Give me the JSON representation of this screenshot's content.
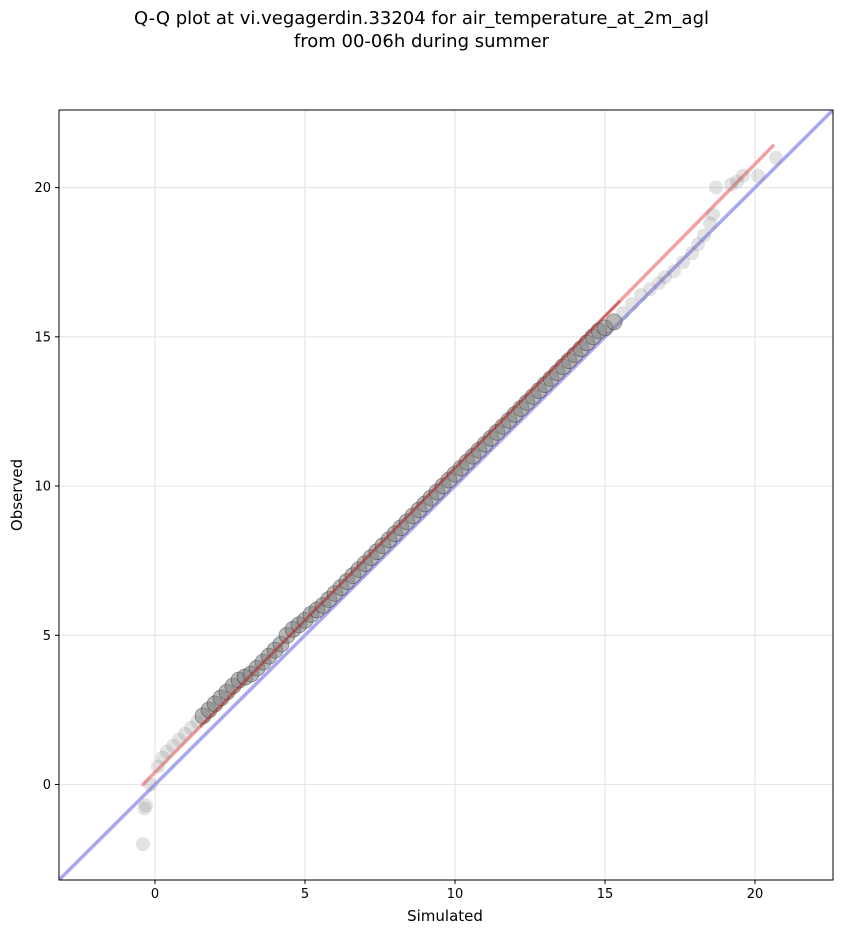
{
  "title_line1": "Q-Q plot at vi.vegagerdin.33204 for air_temperature_at_2m_agl",
  "title_line2": "from 00-06h during summer",
  "chart_data": {
    "type": "scatter",
    "title": "Q-Q plot at vi.vegagerdin.33204 for air_temperature_at_2m_agl from 00-06h during summer",
    "xlabel": "Simulated",
    "ylabel": "Observed",
    "xlim": [
      -3.2,
      22.6
    ],
    "ylim": [
      -3.2,
      22.6
    ],
    "xticks": [
      0,
      5,
      10,
      15,
      20
    ],
    "yticks": [
      0,
      5,
      10,
      15,
      20
    ],
    "grid": true,
    "colors": {
      "points": "#808080",
      "fit_line": "#f4a0a0",
      "identity_line": "#a8a8f0",
      "fit_overlay": "#b03030"
    },
    "points": {
      "x": [
        -0.4,
        -0.35,
        -0.3,
        -0.15,
        0.1,
        0.25,
        0.4,
        0.6,
        0.8,
        1.0,
        1.2,
        1.4,
        1.6,
        1.8,
        2.0,
        2.2,
        2.4,
        2.6,
        2.8,
        3.0,
        3.2,
        3.4,
        3.6,
        3.8,
        4.0,
        4.2,
        4.4,
        4.6,
        4.8,
        5.0,
        5.2,
        5.4,
        5.6,
        5.8,
        6.0,
        6.2,
        6.4,
        6.6,
        6.8,
        7.0,
        7.2,
        7.4,
        7.6,
        7.8,
        8.0,
        8.2,
        8.4,
        8.6,
        8.8,
        9.0,
        9.2,
        9.4,
        9.6,
        9.8,
        10.0,
        10.2,
        10.4,
        10.6,
        10.8,
        11.0,
        11.2,
        11.4,
        11.6,
        11.8,
        12.0,
        12.2,
        12.4,
        12.6,
        12.8,
        13.0,
        13.2,
        13.4,
        13.6,
        13.8,
        14.0,
        14.2,
        14.4,
        14.6,
        14.8,
        15.0,
        15.3,
        15.6,
        15.9,
        16.2,
        16.5,
        16.8,
        17.0,
        17.3,
        17.6,
        17.9,
        18.1,
        18.3,
        18.5,
        18.6,
        18.7,
        19.2,
        19.4,
        19.6,
        20.1,
        20.7
      ],
      "y": [
        -2.0,
        -0.8,
        -0.7,
        0.0,
        0.6,
        0.9,
        1.1,
        1.3,
        1.5,
        1.7,
        1.9,
        2.1,
        2.3,
        2.5,
        2.7,
        2.9,
        3.1,
        3.3,
        3.5,
        3.6,
        3.7,
        3.9,
        4.1,
        4.3,
        4.5,
        4.7,
        5.0,
        5.2,
        5.35,
        5.5,
        5.7,
        5.85,
        6.0,
        6.2,
        6.4,
        6.6,
        6.8,
        7.0,
        7.2,
        7.4,
        7.6,
        7.8,
        8.0,
        8.2,
        8.4,
        8.6,
        8.8,
        9.0,
        9.2,
        9.4,
        9.6,
        9.8,
        10.0,
        10.2,
        10.4,
        10.6,
        10.8,
        11.0,
        11.2,
        11.4,
        11.6,
        11.8,
        12.0,
        12.2,
        12.4,
        12.6,
        12.8,
        13.0,
        13.2,
        13.4,
        13.6,
        13.8,
        14.0,
        14.2,
        14.4,
        14.6,
        14.8,
        15.0,
        15.2,
        15.3,
        15.5,
        15.8,
        16.1,
        16.4,
        16.6,
        16.8,
        17.0,
        17.2,
        17.5,
        17.8,
        18.1,
        18.4,
        18.8,
        19.1,
        20.0,
        20.1,
        20.2,
        20.4,
        20.4,
        21.0
      ]
    },
    "fit_line": {
      "x": [
        -0.4,
        20.6
      ],
      "y": [
        0.0,
        21.4
      ]
    },
    "identity_line": {
      "x": [
        -3.2,
        22.6
      ],
      "y": [
        -3.2,
        22.6
      ]
    }
  }
}
